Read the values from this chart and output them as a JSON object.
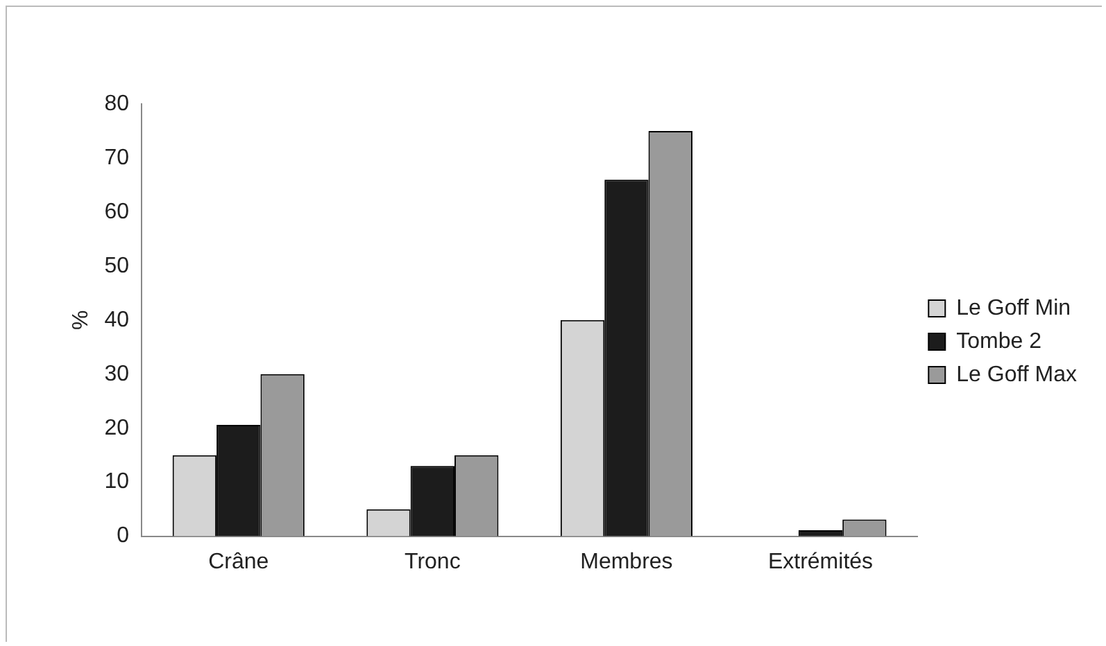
{
  "chart_data": {
    "type": "bar",
    "ylabel": "%",
    "categories": [
      "Crâne",
      "Tronc",
      "Membres",
      "Extrémités"
    ],
    "series": [
      {
        "name": "Le Goff Min",
        "color": "#d4d4d4",
        "values": [
          15,
          5,
          40,
          0
        ]
      },
      {
        "name": "Tombe 2",
        "color": "#1c1c1c",
        "values": [
          20.6,
          13,
          66,
          1.1
        ]
      },
      {
        "name": "Le Goff Max",
        "color": "#9a9a9a",
        "values": [
          30,
          15,
          75,
          3.1
        ]
      }
    ],
    "ylim": [
      0,
      80
    ],
    "yticks": [
      0,
      10,
      20,
      30,
      40,
      50,
      60,
      70,
      80
    ],
    "grid": false,
    "legend": "right"
  }
}
